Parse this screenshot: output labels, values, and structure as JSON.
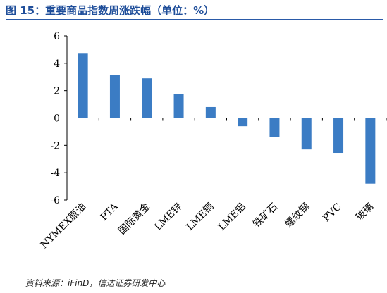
{
  "figure": {
    "title": "图 15：重要商品指数周涨跌幅（单位：%）",
    "source": "资料来源：iFinD，信达证券研发中心"
  },
  "colors": {
    "bar": "#3b7cc4",
    "title": "#1f4e9a",
    "rule": "#2a5aa8"
  },
  "chart_data": {
    "type": "bar",
    "title": "",
    "xlabel": "",
    "ylabel": "",
    "categories": [
      "NYMEX原油",
      "PTA",
      "国际黄金",
      "LME锌",
      "LME铜",
      "LME铝",
      "铁矿石",
      "螺纹钢",
      "PVC",
      "玻璃"
    ],
    "values": [
      4.75,
      3.15,
      2.9,
      1.75,
      0.8,
      -0.6,
      -1.4,
      -2.3,
      -2.55,
      -4.8
    ],
    "ylim": [
      -6,
      6
    ],
    "yticks": [
      6,
      4,
      2,
      0,
      -2,
      -4,
      -6
    ],
    "grid": false,
    "legend": "none"
  }
}
